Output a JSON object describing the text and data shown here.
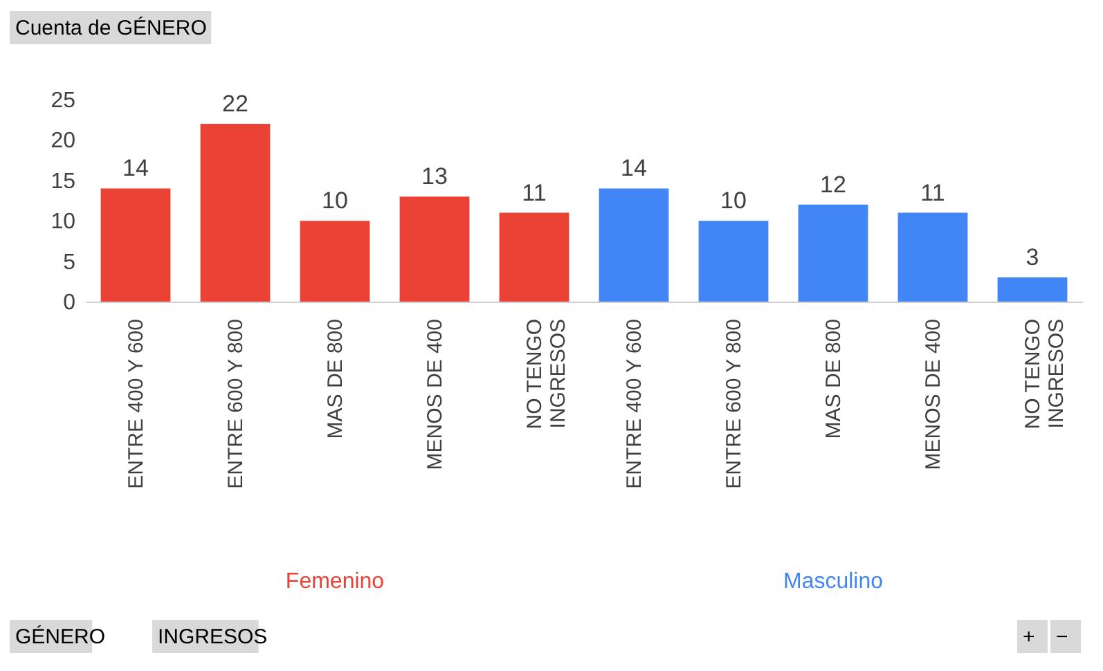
{
  "chart_data": {
    "type": "bar",
    "title": "Cuenta de GÉNERO",
    "categories": [
      "ENTRE 400 Y 600",
      "ENTRE 600 Y 800",
      "MAS DE 800",
      "MENOS DE 400",
      "NO TENGO INGRESOS",
      "ENTRE 400 Y 600",
      "ENTRE 600 Y 800",
      "MAS DE 800",
      "MENOS DE 400",
      "NO TENGO INGRESOS"
    ],
    "series": [
      {
        "name": "Femenino",
        "color": "#ea4335",
        "values": [
          14,
          22,
          10,
          13,
          11,
          null,
          null,
          null,
          null,
          null
        ]
      },
      {
        "name": "Masculino",
        "color": "#4285f4",
        "values": [
          null,
          null,
          null,
          null,
          null,
          14,
          10,
          12,
          11,
          3
        ]
      }
    ],
    "ylim": [
      0,
      25
    ],
    "yticks": [
      0,
      5,
      10,
      15,
      20,
      25
    ],
    "grid": false,
    "data_labels": true,
    "annotations": [
      "GÉNERO",
      "INGRESOS",
      "+",
      "−"
    ]
  }
}
